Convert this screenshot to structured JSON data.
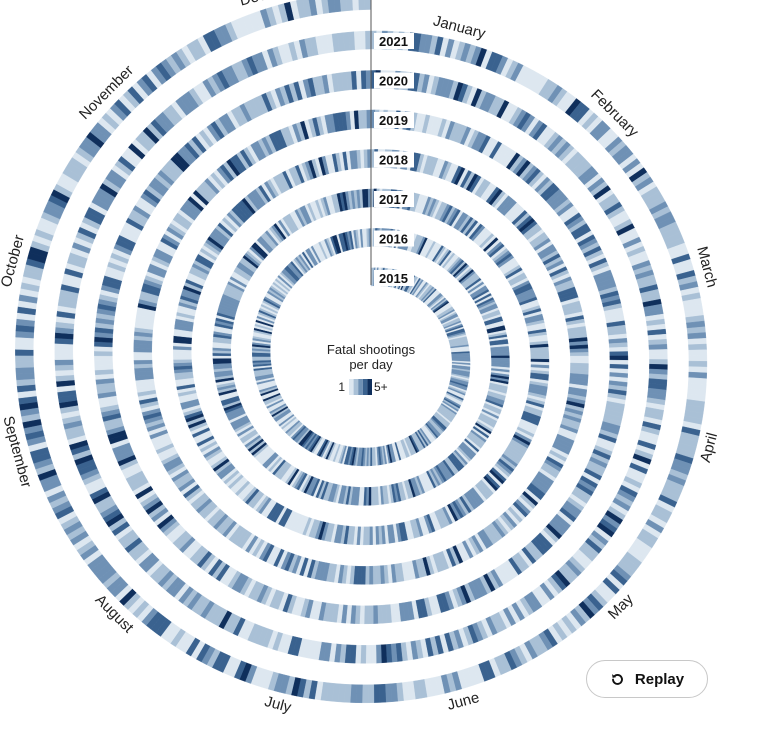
{
  "chart_data": {
    "type": "heatmap",
    "layout": "spiral",
    "title": "Fatal shootings per day",
    "title_lines": [
      "Fatal shootings",
      "per day"
    ],
    "legend": {
      "min_label": "1",
      "max_label": "5+",
      "colors": [
        "#dde7f0",
        "#a9c0d6",
        "#6f91b5",
        "#3a628f",
        "#0f2f5c"
      ]
    },
    "months": [
      "January",
      "February",
      "March",
      "April",
      "May",
      "June",
      "July",
      "August",
      "September",
      "October",
      "November",
      "December"
    ],
    "years": [
      "2015",
      "2016",
      "2017",
      "2018",
      "2019",
      "2020",
      "2021"
    ],
    "value_scale": [
      1,
      5
    ],
    "daily_values_note": "Daily counts per year are drawn along the spiral (approx. read from the figure)"
  },
  "controls": {
    "replay_label": "Replay"
  }
}
